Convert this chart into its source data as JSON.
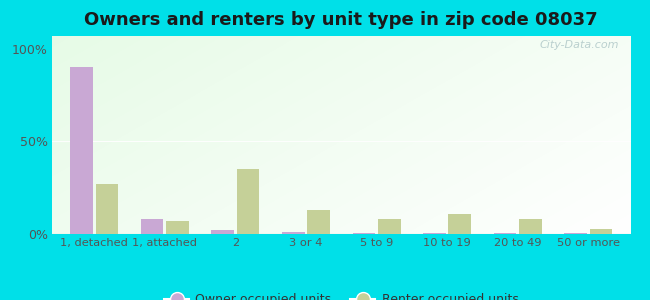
{
  "title": "Owners and renters by unit type in zip code 08037",
  "categories": [
    "1, detached",
    "1, attached",
    "2",
    "3 or 4",
    "5 to 9",
    "10 to 19",
    "20 to 49",
    "50 or more"
  ],
  "owner_values": [
    90,
    8,
    2,
    1,
    0.5,
    0.5,
    0.5,
    0.3
  ],
  "renter_values": [
    27,
    7,
    35,
    13,
    8,
    11,
    8,
    2.5
  ],
  "owner_color": "#c9a8d4",
  "renter_color": "#c5d098",
  "background_outer": "#00e0e8",
  "title_fontsize": 13,
  "ylabel_ticks": [
    "0%",
    "50%",
    "100%"
  ],
  "ylabel_values": [
    0,
    50,
    100
  ],
  "ylim": [
    0,
    107
  ],
  "legend_owner": "Owner occupied units",
  "legend_renter": "Renter occupied units",
  "watermark": "City-Data.com"
}
